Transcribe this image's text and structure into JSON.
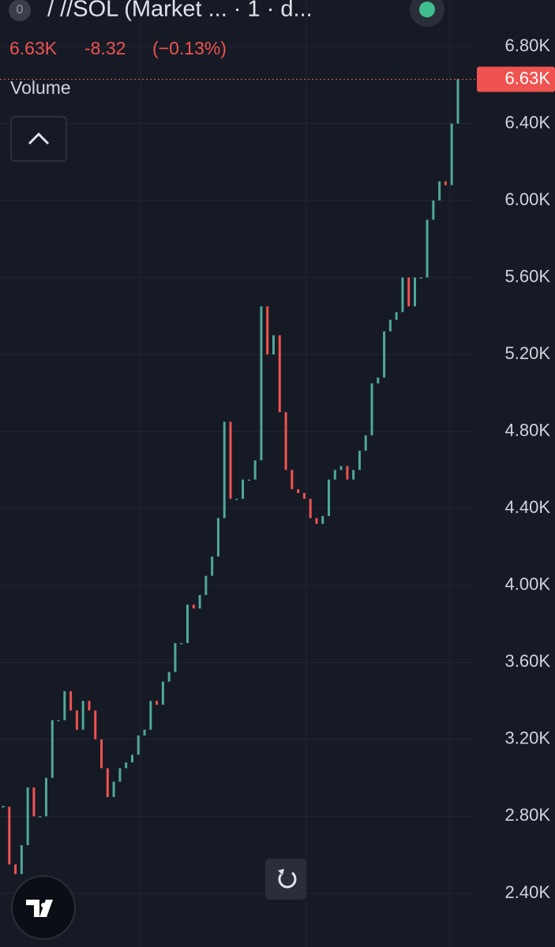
{
  "chart_data": {
    "type": "candlestick",
    "title": "/ //SOL (Market ... · 1 · d...",
    "badge": "0",
    "change": "-8.32",
    "change_pct": "(−0.13%)",
    "indicator": "Volume",
    "last_price": {
      "value": 6630,
      "label": "6.63K"
    },
    "up_color": "#4fa89b",
    "down_color": "#ef5350",
    "values": [
      2850,
      2550,
      2500,
      2650,
      2950,
      2800,
      2800,
      3000,
      3300,
      3300,
      3450,
      3350,
      3250,
      3400,
      3350,
      3200,
      3050,
      2900,
      2980,
      3050,
      3080,
      3120,
      3220,
      3250,
      3400,
      3380,
      3500,
      3550,
      3700,
      3700,
      3900,
      3880,
      3950,
      4050,
      4150,
      4350,
      4850,
      4450,
      4450,
      4550,
      4550,
      4650,
      5450,
      5200,
      5300,
      4900,
      4600,
      4500,
      4480,
      4450,
      4350,
      4320,
      4360,
      4550,
      4600,
      4620,
      4550,
      4600,
      4700,
      4780,
      5050,
      5080,
      5320,
      5380,
      5420,
      5600,
      5450,
      5600,
      5600,
      5900,
      6000,
      6100,
      6080,
      6400,
      6630
    ],
    "ylim": [
      2121,
      7042
    ],
    "yticks": [
      {
        "value": 6800,
        "label": "6.80K"
      },
      {
        "value": 6400,
        "label": "6.40K"
      },
      {
        "value": 6000,
        "label": "6.00K"
      },
      {
        "value": 5600,
        "label": "5.60K"
      },
      {
        "value": 5200,
        "label": "5.20K"
      },
      {
        "value": 4800,
        "label": "4.80K"
      },
      {
        "value": 4400,
        "label": "4.40K"
      },
      {
        "value": 4000,
        "label": "4.00K"
      },
      {
        "value": 3600,
        "label": "3.60K"
      },
      {
        "value": 3200,
        "label": "3.20K"
      },
      {
        "value": 2800,
        "label": "2.80K"
      },
      {
        "value": 2400,
        "label": "2.40K"
      }
    ],
    "grid": true
  }
}
